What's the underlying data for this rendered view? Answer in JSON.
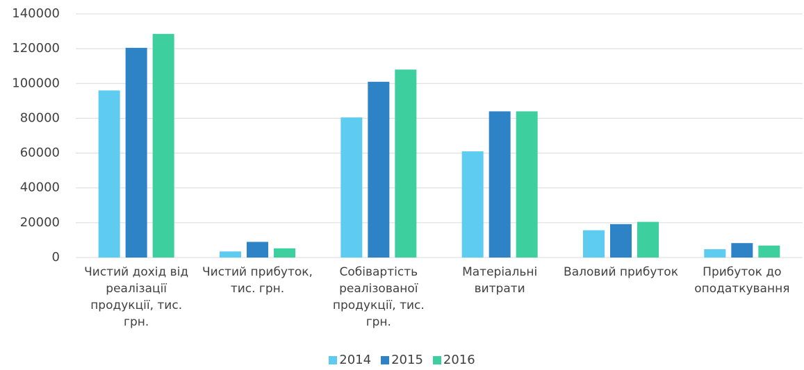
{
  "chart_data": {
    "type": "bar",
    "categories": [
      "Чистий дохід від реалізації продукції, тис. грн.",
      "Чистий прибуток, тис. грн.",
      "Собівартість реалізованої продукції, тис. грн.",
      "Матеріальні витрати",
      "Валовий прибуток",
      "Прибуток до оподаткування"
    ],
    "series": [
      {
        "name": "2014",
        "color": "#5ecbf0",
        "values": [
          96000,
          3500,
          80500,
          61000,
          15700,
          4800
        ]
      },
      {
        "name": "2015",
        "color": "#2e83c6",
        "values": [
          120500,
          9000,
          101000,
          84000,
          19200,
          8300
        ]
      },
      {
        "name": "2016",
        "color": "#3ecf9e",
        "values": [
          128500,
          5300,
          108000,
          84000,
          20500,
          6900
        ]
      }
    ],
    "ylim": [
      0,
      140000
    ],
    "yticks": [
      0,
      20000,
      40000,
      60000,
      80000,
      100000,
      120000,
      140000
    ],
    "grid": true,
    "legend": "bottom"
  }
}
